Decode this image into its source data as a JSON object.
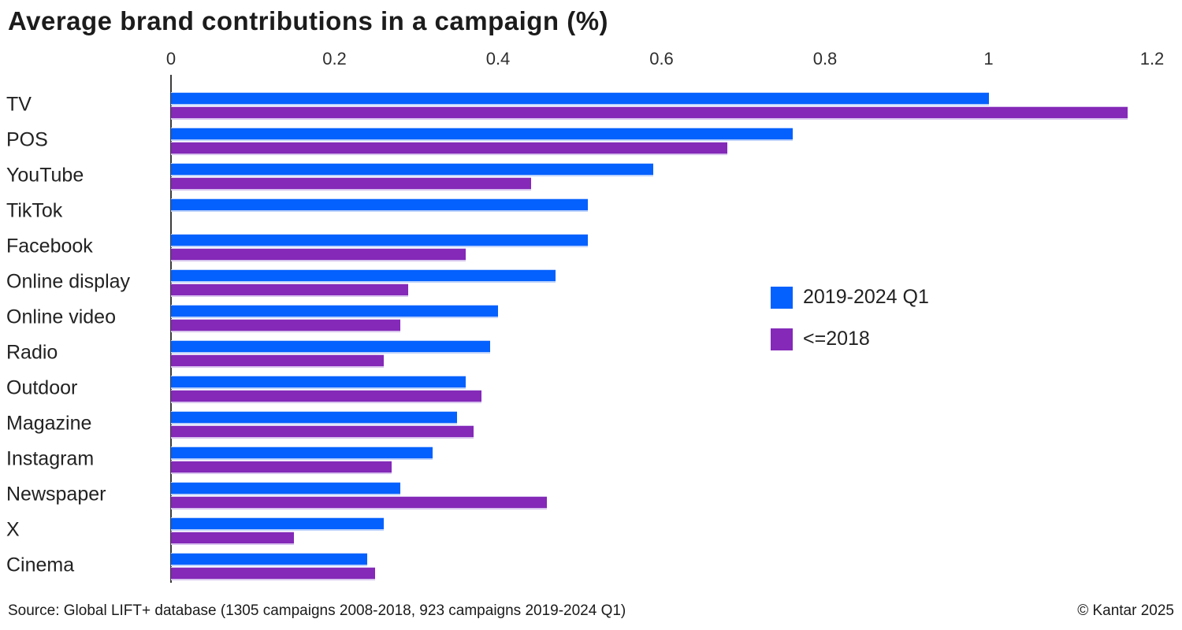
{
  "header": {
    "title": "Average brand contributions in a campaign (%)"
  },
  "chart_data": {
    "type": "bar",
    "orientation": "horizontal",
    "title": "Average brand contributions in a campaign (%)",
    "xlabel": "",
    "ylabel": "",
    "xlim": [
      0,
      1.2
    ],
    "x_ticks": [
      0,
      0.2,
      0.4,
      0.6,
      0.8,
      1,
      1.2
    ],
    "x_tick_labels": [
      "0",
      "0.2",
      "0.4",
      "0.6",
      "0.8",
      "1",
      "1.2"
    ],
    "grid": false,
    "legend_position": "right-middle",
    "categories": [
      "TV",
      "POS",
      "YouTube",
      "TikTok",
      "Facebook",
      "Online display",
      "Online video",
      "Radio",
      "Outdoor",
      "Magazine",
      "Instagram",
      "Newspaper",
      "X",
      "Cinema"
    ],
    "series": [
      {
        "name": "2019-2024 Q1",
        "color": "#0561FD",
        "values": [
          1.0,
          0.76,
          0.59,
          0.51,
          0.51,
          0.47,
          0.4,
          0.39,
          0.36,
          0.35,
          0.32,
          0.28,
          0.26,
          0.24
        ]
      },
      {
        "name": "<=2018",
        "color": "#8429B8",
        "values": [
          1.17,
          0.68,
          0.44,
          null,
          0.36,
          0.29,
          0.28,
          0.26,
          0.38,
          0.37,
          0.27,
          0.46,
          0.15,
          0.25
        ]
      }
    ]
  },
  "legend": {
    "items": [
      {
        "label": "2019-2024 Q1",
        "color": "#0561FD"
      },
      {
        "label": "<=2018",
        "color": "#8429B8"
      }
    ]
  },
  "footer": {
    "source": "Source: Global LIFT+ database (1305 campaigns 2008-2018, 923 campaigns 2019-2024 Q1)",
    "copyright": "© Kantar 2025"
  }
}
